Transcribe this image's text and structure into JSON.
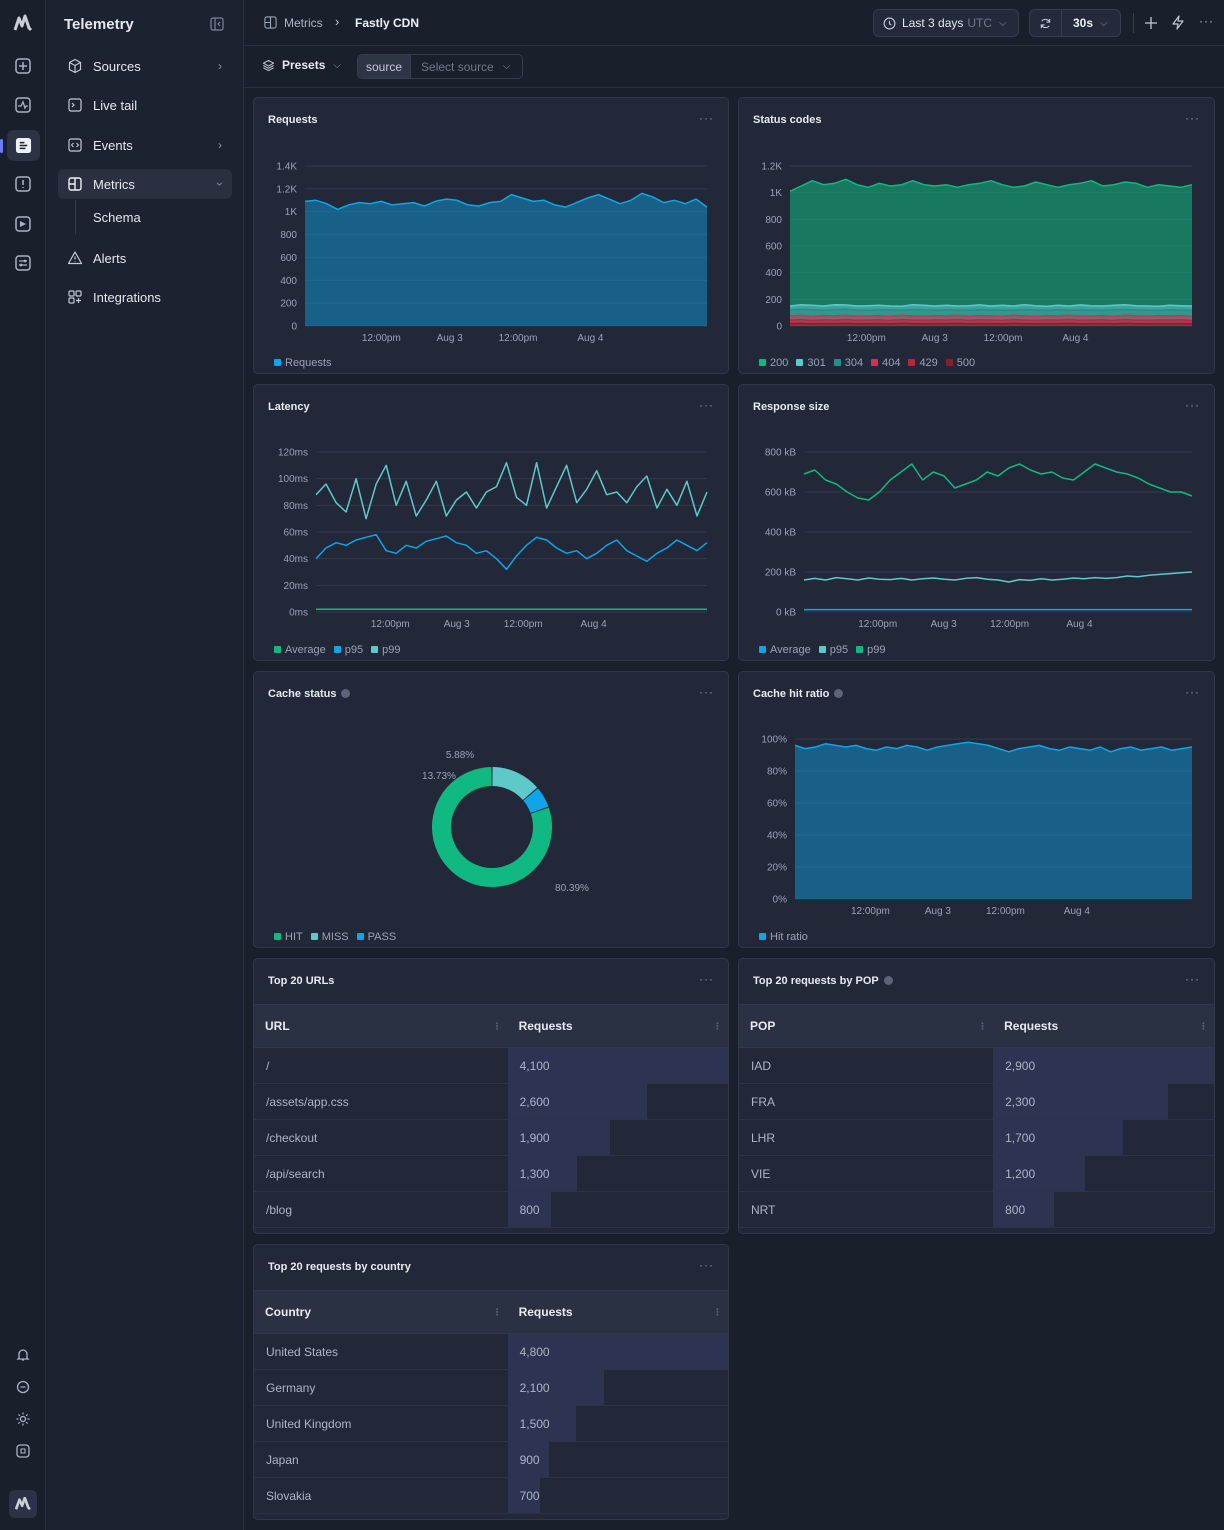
{
  "app": {
    "name": "Telemetry"
  },
  "nav": {
    "items": [
      {
        "label": "Sources"
      },
      {
        "label": "Live tail"
      },
      {
        "label": "Events"
      },
      {
        "label": "Metrics"
      },
      {
        "label": "Schema"
      },
      {
        "label": "Alerts"
      },
      {
        "label": "Integrations"
      }
    ]
  },
  "breadcrumb": {
    "parent": "Metrics",
    "current": "Fastly CDN"
  },
  "toolbar": {
    "time_range": "Last 3 days",
    "timezone": "UTC",
    "refresh_interval": "30s"
  },
  "filters": {
    "presets_label": "Presets",
    "source_tag": "source",
    "source_placeholder": "Select source"
  },
  "colors": {
    "blue": "#0ea5e9",
    "green": "#10b981",
    "teal": "#5ec9c9",
    "red": "#d0324f",
    "darkred": "#8b1e2e"
  },
  "panels": {
    "requests": {
      "title": "Requests",
      "legend": [
        "Requests"
      ]
    },
    "status_codes": {
      "title": "Status codes",
      "legend": [
        "200",
        "301",
        "304",
        "404",
        "429",
        "500"
      ]
    },
    "latency": {
      "title": "Latency",
      "legend": [
        "Average",
        "p95",
        "p99"
      ]
    },
    "response_size": {
      "title": "Response size",
      "legend": [
        "Average",
        "p95",
        "p99"
      ]
    },
    "cache_status": {
      "title": "Cache status",
      "legend": [
        "HIT",
        "MISS",
        "PASS"
      ]
    },
    "cache_hit_ratio": {
      "title": "Cache hit ratio",
      "legend": [
        "Hit ratio"
      ]
    },
    "top_urls": {
      "title": "Top 20 URLs",
      "columns": [
        "URL",
        "Requests"
      ],
      "rows": [
        {
          "key": "/",
          "value": "4,100",
          "n": 4100
        },
        {
          "key": "/assets/app.css",
          "value": "2,600",
          "n": 2600
        },
        {
          "key": "/checkout",
          "value": "1,900",
          "n": 1900
        },
        {
          "key": "/api/search",
          "value": "1,300",
          "n": 1300
        },
        {
          "key": "/blog",
          "value": "800",
          "n": 800
        }
      ]
    },
    "top_pop": {
      "title": "Top 20 requests by POP",
      "columns": [
        "POP",
        "Requests"
      ],
      "rows": [
        {
          "key": "IAD",
          "value": "2,900",
          "n": 2900
        },
        {
          "key": "FRA",
          "value": "2,300",
          "n": 2300
        },
        {
          "key": "LHR",
          "value": "1,700",
          "n": 1700
        },
        {
          "key": "VIE",
          "value": "1,200",
          "n": 1200
        },
        {
          "key": "NRT",
          "value": "800",
          "n": 800
        }
      ]
    },
    "top_country": {
      "title": "Top 20 requests by country",
      "columns": [
        "Country",
        "Requests"
      ],
      "rows": [
        {
          "key": "United States",
          "value": "4,800",
          "n": 4800
        },
        {
          "key": "Germany",
          "value": "2,100",
          "n": 2100
        },
        {
          "key": "United Kingdom",
          "value": "1,500",
          "n": 1500
        },
        {
          "key": "Japan",
          "value": "900",
          "n": 900
        },
        {
          "key": "Slovakia",
          "value": "700",
          "n": 700
        }
      ]
    }
  },
  "chart_data": [
    {
      "id": "requests",
      "type": "area",
      "title": "Requests",
      "x_ticks": [
        "12:00pm",
        "Aug 3",
        "12:00pm",
        "Aug 4"
      ],
      "y_ticks": [
        "0",
        "200",
        "400",
        "600",
        "800",
        "1K",
        "1.2K",
        "1.4K"
      ],
      "ylim": [
        0,
        1400
      ],
      "series": [
        {
          "name": "Requests",
          "color": "#0ea5e9",
          "values": [
            1090,
            1100,
            1070,
            1020,
            1060,
            1080,
            1070,
            1090,
            1060,
            1070,
            1080,
            1050,
            1090,
            1110,
            1100,
            1060,
            1050,
            1080,
            1090,
            1150,
            1120,
            1090,
            1100,
            1060,
            1040,
            1080,
            1120,
            1150,
            1110,
            1070,
            1100,
            1160,
            1130,
            1080,
            1100,
            1070,
            1110,
            1040
          ]
        }
      ]
    },
    {
      "id": "status_codes",
      "type": "area",
      "title": "Status codes",
      "x_ticks": [
        "12:00pm",
        "Aug 3",
        "12:00pm",
        "Aug 4"
      ],
      "y_ticks": [
        "0",
        "200",
        "400",
        "600",
        "800",
        "1K",
        "1.2K"
      ],
      "ylim": [
        0,
        1200
      ],
      "series": [
        {
          "name": "200",
          "color": "#10b981",
          "values": [
            1010,
            1050,
            1090,
            1060,
            1070,
            1100,
            1060,
            1040,
            1070,
            1050,
            1060,
            1090,
            1060,
            1050,
            1060,
            1040,
            1060,
            1070,
            1090,
            1060,
            1040,
            1050,
            1080,
            1060,
            1040,
            1060,
            1070,
            1090,
            1050,
            1060,
            1080,
            1070,
            1040,
            1060,
            1050,
            1040,
            1060
          ]
        },
        {
          "name": "301",
          "color": "#5ec9c9",
          "values": [
            150,
            160,
            155,
            150,
            160,
            158,
            150,
            152,
            155,
            150,
            148,
            160,
            156,
            150,
            155,
            150,
            152,
            158,
            150,
            155,
            150,
            160,
            152,
            148,
            155,
            150,
            158,
            152,
            150,
            155,
            160,
            152,
            150,
            148,
            155,
            152,
            150
          ]
        },
        {
          "name": "304",
          "color": "#2a8c8a",
          "values": [
            120,
            125,
            122,
            118,
            124,
            126,
            120,
            118,
            122,
            120,
            118,
            124,
            121,
            119,
            122,
            120,
            118,
            123,
            121,
            120,
            118,
            124,
            120,
            118,
            122,
            119,
            121,
            120,
            118,
            122,
            124,
            120,
            118,
            117,
            122,
            120,
            119
          ]
        },
        {
          "name": "404",
          "color": "#d0324f",
          "values": [
            75,
            80,
            72,
            78,
            76,
            80,
            74,
            76,
            78,
            72,
            80,
            76,
            74,
            78,
            75,
            80,
            72,
            78,
            76,
            74,
            80,
            76,
            72,
            78,
            75,
            80,
            74,
            76,
            78,
            72,
            80,
            76,
            74,
            78,
            75,
            78,
            74
          ]
        },
        {
          "name": "429",
          "color": "#b4283f",
          "values": [
            45,
            48,
            42,
            46,
            44,
            48,
            42,
            44,
            46,
            42,
            48,
            44,
            42,
            46,
            45,
            48,
            42,
            46,
            44,
            42,
            48,
            44,
            42,
            46,
            45,
            48,
            42,
            44,
            46,
            42,
            48,
            44,
            42,
            46,
            45,
            46,
            42
          ]
        },
        {
          "name": "500",
          "color": "#8b1e2e",
          "values": [
            18,
            20,
            17,
            19,
            18,
            20,
            17,
            18,
            19,
            17,
            20,
            18,
            17,
            19,
            18,
            20,
            17,
            19,
            18,
            17,
            20,
            18,
            17,
            19,
            18,
            20,
            17,
            18,
            19,
            17,
            20,
            18,
            17,
            19,
            18,
            19,
            17
          ]
        }
      ]
    },
    {
      "id": "latency",
      "type": "line",
      "title": "Latency",
      "x_ticks": [
        "12:00pm",
        "Aug 3",
        "12:00pm",
        "Aug 4"
      ],
      "y_ticks": [
        "0ms",
        "20ms",
        "40ms",
        "60ms",
        "80ms",
        "100ms",
        "120ms"
      ],
      "ylim": [
        0,
        120
      ],
      "series": [
        {
          "name": "Average",
          "color": "#10b981",
          "values": [
            2,
            2,
            2,
            2,
            2,
            2,
            2,
            2,
            2,
            2,
            2,
            2,
            2,
            2,
            2,
            2,
            2,
            2,
            2,
            2,
            2,
            2,
            2,
            2,
            2,
            2,
            2,
            2,
            2,
            2,
            2,
            2,
            2,
            2,
            2,
            2,
            2,
            2,
            2,
            2
          ]
        },
        {
          "name": "p95",
          "color": "#0ea5e9",
          "values": [
            40,
            48,
            52,
            50,
            54,
            56,
            58,
            46,
            44,
            50,
            48,
            53,
            55,
            57,
            52,
            50,
            44,
            46,
            40,
            32,
            42,
            50,
            56,
            54,
            48,
            44,
            46,
            40,
            44,
            50,
            54,
            46,
            42,
            38,
            44,
            48,
            54,
            50,
            46,
            52
          ]
        },
        {
          "name": "p99",
          "color": "#5ec9c9",
          "values": [
            88,
            96,
            82,
            75,
            100,
            70,
            96,
            110,
            80,
            98,
            72,
            84,
            98,
            72,
            84,
            90,
            78,
            90,
            94,
            112,
            86,
            80,
            112,
            78,
            94,
            110,
            82,
            92,
            106,
            88,
            90,
            82,
            94,
            102,
            78,
            92,
            80,
            98,
            72,
            90
          ]
        }
      ]
    },
    {
      "id": "response_size",
      "type": "line",
      "title": "Response size",
      "x_ticks": [
        "12:00pm",
        "Aug 3",
        "12:00pm",
        "Aug 4"
      ],
      "y_ticks": [
        "0 kB",
        "200 kB",
        "400 kB",
        "600 kB",
        "800 kB"
      ],
      "ylim": [
        0,
        800
      ],
      "series": [
        {
          "name": "Average",
          "color": "#0ea5e9",
          "values": [
            12,
            12,
            12,
            12,
            12,
            12,
            12,
            12,
            12,
            12,
            12,
            12,
            12,
            12,
            12,
            12,
            12,
            12,
            12,
            12,
            12,
            12,
            12,
            12,
            12,
            12,
            12,
            12,
            12,
            12,
            12,
            12,
            12,
            12,
            12,
            12,
            12,
            12,
            12,
            12
          ]
        },
        {
          "name": "p95",
          "color": "#5ec9c9",
          "values": [
            160,
            168,
            160,
            172,
            166,
            160,
            170,
            164,
            162,
            168,
            160,
            166,
            170,
            164,
            160,
            168,
            172,
            164,
            160,
            150,
            162,
            158,
            166,
            160,
            164,
            170,
            166,
            172,
            168,
            172,
            180,
            176,
            184,
            188,
            192,
            196,
            200
          ]
        },
        {
          "name": "p99",
          "color": "#10b981",
          "values": [
            690,
            710,
            660,
            640,
            600,
            570,
            560,
            600,
            660,
            700,
            740,
            660,
            700,
            680,
            620,
            640,
            660,
            700,
            680,
            720,
            740,
            710,
            690,
            700,
            670,
            660,
            700,
            740,
            720,
            700,
            690,
            670,
            640,
            620,
            600,
            600,
            580
          ]
        }
      ]
    },
    {
      "id": "cache_status",
      "type": "pie",
      "title": "Cache status",
      "labels": [
        "HIT",
        "MISS",
        "PASS"
      ],
      "values": [
        80.39,
        13.73,
        5.88
      ],
      "value_labels": [
        "80.39%",
        "13.73%",
        "5.88%"
      ],
      "colors": [
        "#10b981",
        "#5ec9c9",
        "#0ea5e9"
      ]
    },
    {
      "id": "cache_hit_ratio",
      "type": "area",
      "title": "Cache hit ratio",
      "x_ticks": [
        "12:00pm",
        "Aug 3",
        "12:00pm",
        "Aug 4"
      ],
      "y_ticks": [
        "0%",
        "20%",
        "40%",
        "60%",
        "80%",
        "100%"
      ],
      "ylim": [
        0,
        100
      ],
      "series": [
        {
          "name": "Hit ratio",
          "color": "#0ea5e9",
          "values": [
            96,
            94,
            95,
            97,
            96,
            95,
            96,
            94,
            93,
            95,
            94,
            96,
            95,
            93,
            95,
            96,
            97,
            98,
            97,
            96,
            94,
            92,
            94,
            95,
            96,
            94,
            93,
            95,
            94,
            93,
            95,
            92,
            94,
            95,
            93,
            94,
            95,
            93,
            94,
            95
          ]
        }
      ]
    }
  ]
}
